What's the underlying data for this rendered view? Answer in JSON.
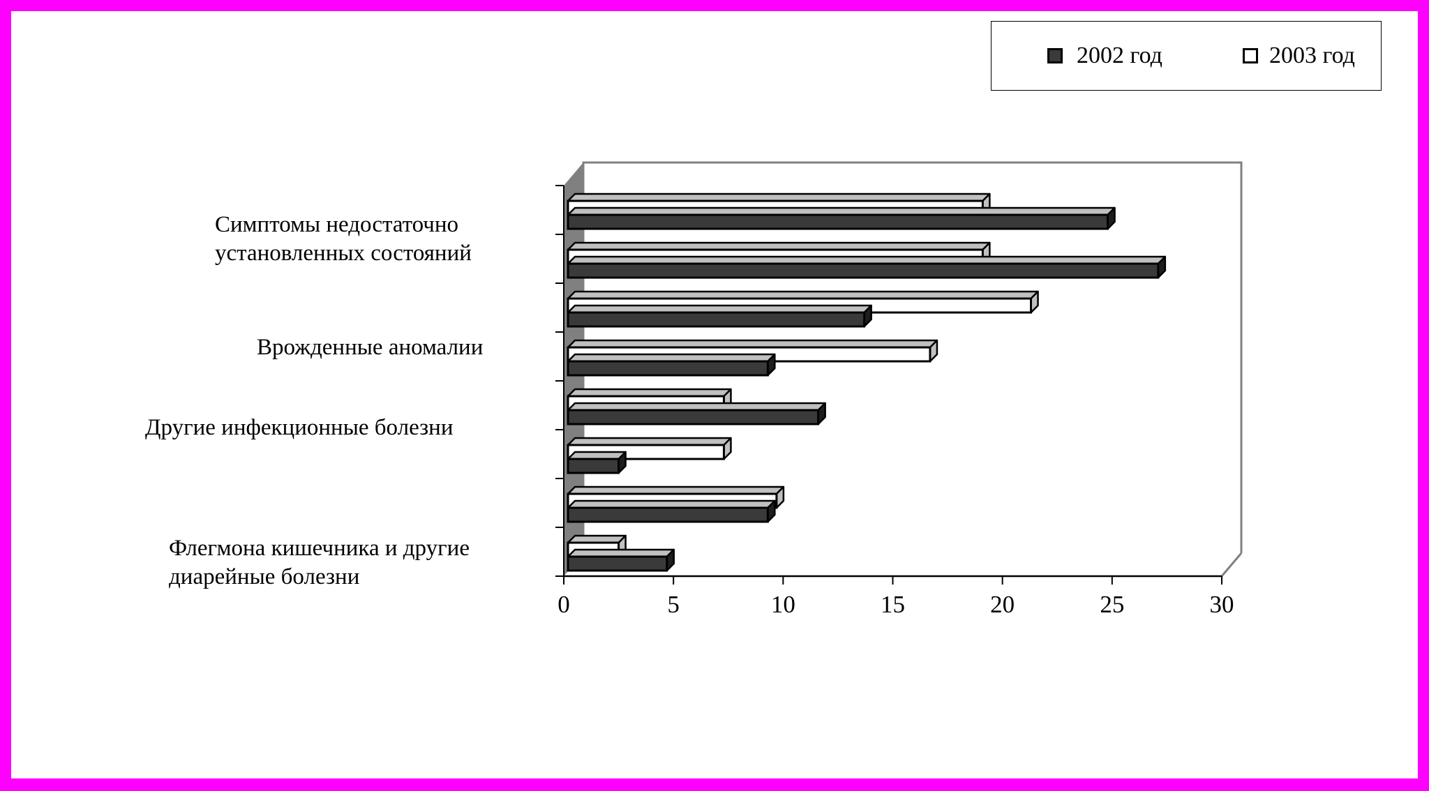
{
  "chart_data": {
    "type": "bar",
    "orientation": "horizontal",
    "style": "3d",
    "legend_position": "top-right",
    "grid": false,
    "categories": [
      "Симптомы недостаточно установленных состояний",
      "",
      "Врожденные аномалии",
      "",
      "Другие инфекционные болезни",
      "",
      "Флегмона кишечника и другие диарейные болезни",
      ""
    ],
    "category_label_lines": [
      [
        "Симптомы недостаточно",
        "установленных состояний"
      ],
      [],
      [
        "Врожденные аномалии"
      ],
      [],
      [
        "Другие инфекционные болезни"
      ],
      [],
      [
        "Флегмона кишечника и другие",
        "диарейные болезни"
      ],
      []
    ],
    "series": [
      {
        "name": "2002 год",
        "values": [
          24.8,
          27.1,
          13.7,
          9.3,
          11.6,
          2.5,
          9.3,
          4.7
        ],
        "color": "#3a3a3a"
      },
      {
        "name": "2003 год",
        "values": [
          19.1,
          19.1,
          21.3,
          16.7,
          7.3,
          7.3,
          9.7,
          2.5
        ],
        "color": "#ffffff"
      }
    ],
    "xlim": [
      0,
      30
    ],
    "xticks": [
      "0",
      "5",
      "10",
      "15",
      "20",
      "25",
      "30"
    ],
    "xlabel": "",
    "ylabel": "",
    "title": ""
  },
  "colors": {
    "frame": "#ff00ff",
    "background": "#ffffff",
    "bar_2002": "#3a3a3a",
    "bar_2003": "#ffffff",
    "bar_top": "#c0c0c0",
    "wall_side": "#808080",
    "outline": "#000000"
  }
}
